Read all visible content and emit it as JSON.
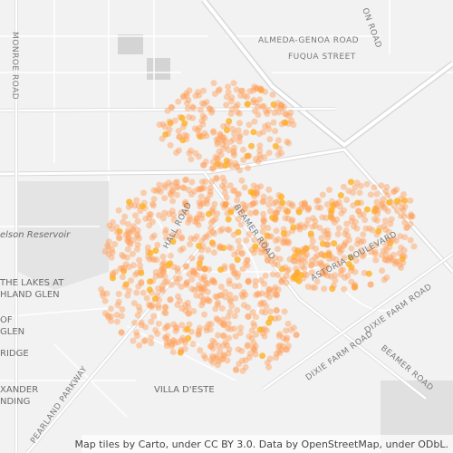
{
  "labels": [
    "ON ROAD",
    "ALMEDA-GENOA ROAD",
    "FUQUA STREET",
    "MONROE ROAD",
    "elson Reservoir",
    "THE LAKES AT",
    "HLAND GLEN",
    "OF",
    "GLEN",
    "RIDGE",
    "XANDER",
    "NDING",
    "HALL ROAD",
    "BEAMER ROAD",
    "ASTORIA BOULEVARD",
    "DIXIE FARM ROAD",
    "DIXIE FARM ROAD",
    "BEAMER ROAD",
    "VILLA D'ESTE",
    "PEARLAND PARKWAY"
  ],
  "attribution": "Map tiles by Carto, under CC BY 3.0. Data by OpenStreetMap, under ODbL."
}
